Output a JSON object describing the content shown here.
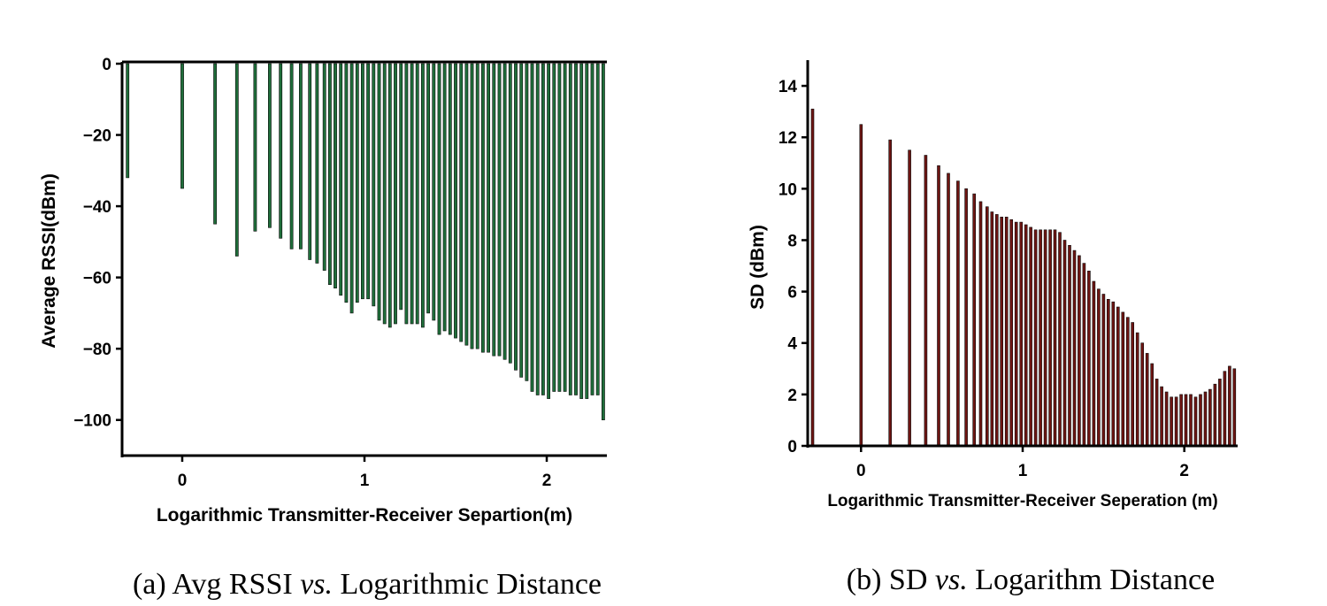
{
  "chart_data": [
    {
      "type": "bar",
      "title": "",
      "caption": {
        "prefix": "(a) Avg RSSI ",
        "vs": "vs.",
        "suffix": " Logarithmic Distance"
      },
      "xlabel": "Logarithmic Transmitter-Receiver Separtion(m)",
      "ylabel": "Average RSSI(dBm)",
      "xlim": [
        -0.33,
        2.33
      ],
      "ylim": [
        -110,
        0
      ],
      "xticks": [
        0,
        1,
        2
      ],
      "yticks": [
        0,
        -20,
        -40,
        -60,
        -80,
        -100
      ],
      "color": "#1f6e3a",
      "x": [
        -0.3,
        0.0,
        0.18,
        0.3,
        0.4,
        0.48,
        0.54,
        0.6,
        0.65,
        0.7,
        0.74,
        0.78,
        0.81,
        0.84,
        0.87,
        0.9,
        0.93,
        0.96,
        0.99,
        1.02,
        1.05,
        1.08,
        1.11,
        1.14,
        1.17,
        1.2,
        1.23,
        1.26,
        1.29,
        1.32,
        1.35,
        1.38,
        1.41,
        1.44,
        1.47,
        1.5,
        1.53,
        1.56,
        1.59,
        1.62,
        1.65,
        1.68,
        1.71,
        1.74,
        1.77,
        1.8,
        1.83,
        1.86,
        1.89,
        1.92,
        1.95,
        1.98,
        2.01,
        2.04,
        2.07,
        2.1,
        2.13,
        2.16,
        2.19,
        2.22,
        2.25,
        2.28,
        2.31
      ],
      "values": [
        -32,
        -35,
        -45,
        -54,
        -47,
        -46,
        -49,
        -52,
        -52,
        -55,
        -56,
        -58,
        -62,
        -63,
        -65,
        -67,
        -70,
        -67,
        -66,
        -66,
        -68,
        -72,
        -73,
        -74,
        -73,
        -69,
        -73,
        -73,
        -73,
        -74,
        -70,
        -72,
        -76,
        -75,
        -76,
        -77,
        -78,
        -79,
        -80,
        -80,
        -81,
        -81,
        -82,
        -82,
        -83,
        -84,
        -86,
        -88,
        -89,
        -92,
        -93,
        -93,
        -94,
        -92,
        -92,
        -92,
        -93,
        -93,
        -94,
        -94,
        -93,
        -93,
        -100
      ]
    },
    {
      "type": "bar",
      "title": "",
      "caption": {
        "prefix": "(b) SD ",
        "vs": "vs.",
        "suffix": " Logarithm Distance"
      },
      "xlabel": "Logarithmic Transmitter-Receiver Seperation (m)",
      "ylabel": "SD (dBm)",
      "xlim": [
        -0.33,
        2.33
      ],
      "ylim": [
        0,
        15
      ],
      "xticks": [
        0,
        1,
        2
      ],
      "yticks": [
        0,
        2,
        4,
        6,
        8,
        10,
        12,
        14
      ],
      "color": "#6e1512",
      "x": [
        -0.3,
        0.0,
        0.18,
        0.3,
        0.4,
        0.48,
        0.54,
        0.6,
        0.65,
        0.7,
        0.74,
        0.78,
        0.81,
        0.84,
        0.87,
        0.9,
        0.93,
        0.96,
        0.99,
        1.02,
        1.05,
        1.08,
        1.11,
        1.14,
        1.17,
        1.2,
        1.23,
        1.26,
        1.29,
        1.32,
        1.35,
        1.38,
        1.41,
        1.44,
        1.47,
        1.5,
        1.53,
        1.56,
        1.59,
        1.62,
        1.65,
        1.68,
        1.71,
        1.74,
        1.77,
        1.8,
        1.83,
        1.86,
        1.89,
        1.92,
        1.95,
        1.98,
        2.01,
        2.04,
        2.07,
        2.1,
        2.13,
        2.16,
        2.19,
        2.22,
        2.25,
        2.28,
        2.31
      ],
      "values": [
        13.1,
        12.5,
        11.9,
        11.5,
        11.3,
        10.9,
        10.6,
        10.3,
        10.0,
        9.8,
        9.5,
        9.3,
        9.1,
        9.0,
        8.9,
        8.9,
        8.8,
        8.7,
        8.7,
        8.6,
        8.5,
        8.4,
        8.4,
        8.4,
        8.4,
        8.4,
        8.3,
        8.0,
        7.8,
        7.6,
        7.4,
        7.1,
        6.8,
        6.4,
        6.1,
        5.9,
        5.7,
        5.6,
        5.4,
        5.2,
        5.0,
        4.8,
        4.4,
        4.0,
        3.6,
        3.2,
        2.6,
        2.3,
        2.1,
        1.9,
        1.9,
        2.0,
        2.0,
        2.0,
        1.9,
        2.0,
        2.1,
        2.2,
        2.4,
        2.6,
        2.9,
        3.1,
        3.0
      ]
    }
  ]
}
